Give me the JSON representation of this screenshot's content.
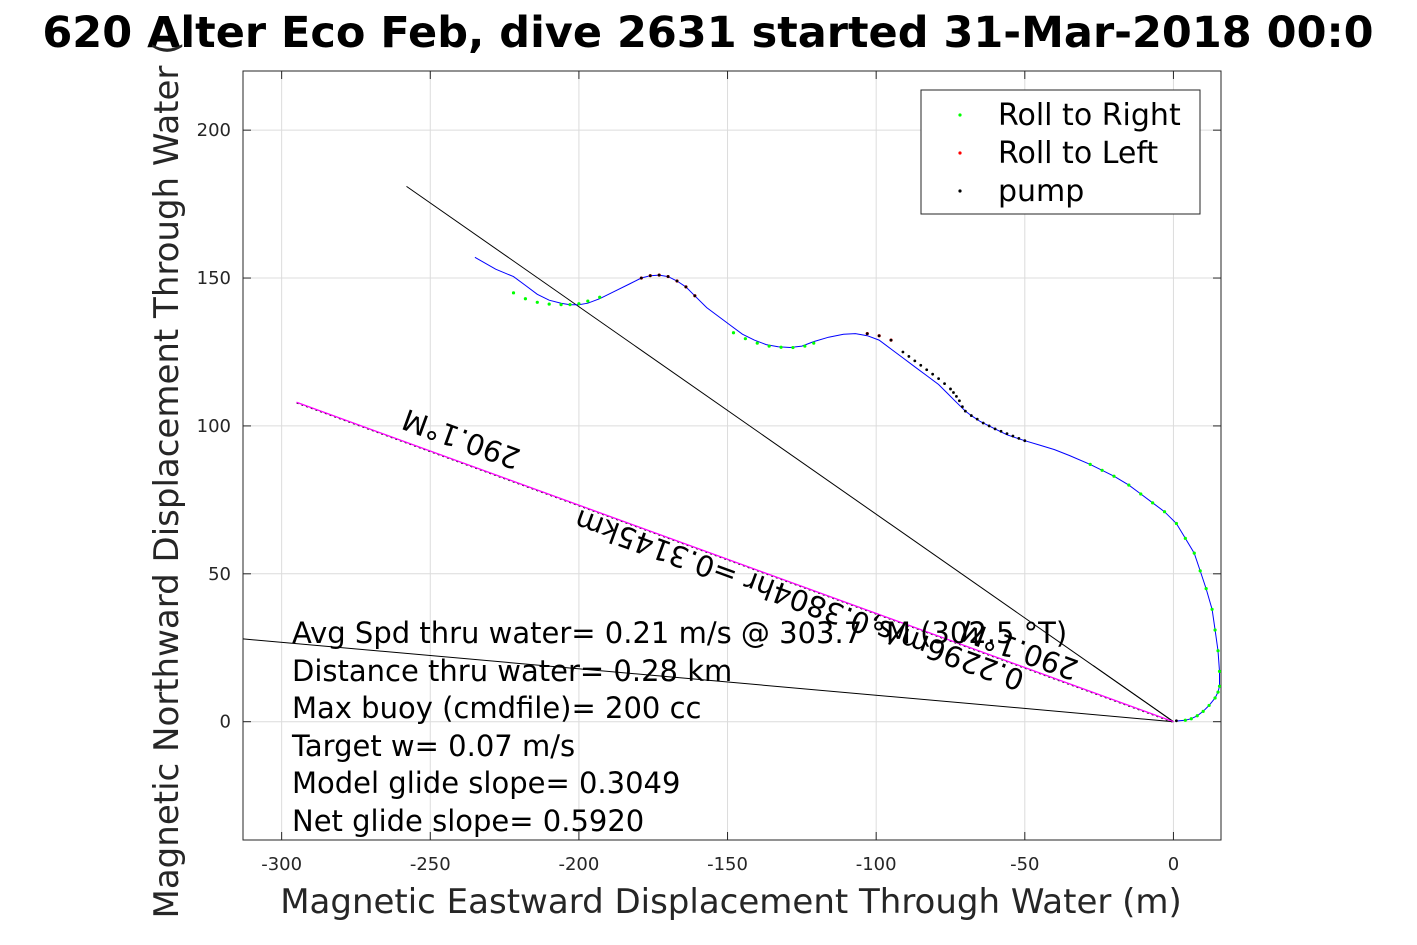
{
  "chart_data": {
    "type": "line",
    "title": "620 Alter Eco Feb, dive 2631 started 31-Mar-2018 00:0",
    "xlabel": "Magnetic Eastward Displacement Through Water (m)",
    "ylabel": "Magnetic Northward Displacement Through Water (",
    "xlim": [
      -313,
      16
    ],
    "ylim": [
      -40,
      220
    ],
    "xticks": [
      -300,
      -250,
      -200,
      -150,
      -100,
      -50,
      0
    ],
    "xtick_labels": [
      "-300",
      "-250",
      "-200",
      "-150",
      "-100",
      "-50",
      "0"
    ],
    "yticks": [
      0,
      50,
      100,
      150,
      200
    ],
    "ytick_labels": [
      "0",
      "50",
      "100",
      "150",
      "200"
    ],
    "grid": true,
    "legend_position": "top-right",
    "legend": [
      "Roll to Right",
      "Roll to Left",
      "pump"
    ],
    "colors": {
      "track": "#0000ff",
      "roll_right": "#00ff00",
      "roll_left": "#ff0000",
      "pump": "#000000",
      "current_line": "#ff00ff",
      "reference_lines": "#000000",
      "grid": "#dcdcdc",
      "axes": "#262626"
    },
    "series": [
      {
        "name": "track",
        "x": [
          -235,
          -228,
          -222,
          -218,
          -214,
          -210,
          -206,
          -203,
          -200,
          -197,
          -193,
          -188,
          -183,
          -179,
          -176,
          -173,
          -170,
          -167,
          -164,
          -161,
          -157,
          -153,
          -149,
          -145,
          -141,
          -137,
          -133,
          -129,
          -125,
          -121,
          -116,
          -111,
          -107,
          -103,
          -99,
          -95,
          -91,
          -87,
          -83,
          -79,
          -76,
          -73,
          -71,
          -70,
          -68,
          -65,
          -62,
          -59,
          -56,
          -53,
          -50,
          -45,
          -40,
          -35,
          -28,
          -24,
          -20,
          -15,
          -11,
          -7,
          -3,
          1,
          4,
          7,
          9,
          11,
          13,
          14,
          15,
          15.5,
          15.5,
          15,
          14,
          12,
          10,
          8,
          6,
          4,
          2,
          1
        ],
        "y": [
          157,
          153,
          150.5,
          147.5,
          144.5,
          142.5,
          141.5,
          141,
          141,
          141.5,
          143,
          145.5,
          148,
          150,
          150.8,
          151,
          150.5,
          149,
          147,
          144,
          140,
          137,
          134,
          131,
          129,
          127.5,
          126.8,
          126.5,
          127,
          128.5,
          130,
          131,
          131.2,
          130.5,
          129,
          126,
          123,
          120,
          117,
          114,
          111,
          108,
          106,
          105,
          103.5,
          101.5,
          100,
          98.5,
          97,
          96,
          95,
          93.5,
          92,
          90,
          87,
          85,
          83,
          80,
          77,
          74,
          71,
          67,
          62,
          57,
          51,
          45,
          38,
          31,
          24,
          17,
          12,
          10,
          8,
          5.5,
          3.5,
          2,
          1,
          0.5,
          0.3,
          0.2
        ]
      },
      {
        "name": "Roll to Right",
        "x": [
          -222,
          -218,
          -214,
          -210,
          -206,
          -203,
          -200,
          -197,
          -193,
          -148,
          -144,
          -140,
          -136,
          -132,
          -128,
          -124,
          -121,
          -28,
          -24,
          -20,
          -15,
          -11,
          -7,
          -3,
          1,
          4,
          7,
          9,
          11,
          13,
          14,
          15,
          15.5,
          15.5,
          15,
          14,
          12,
          10,
          8,
          6,
          4
        ],
        "y": [
          145,
          143,
          141.8,
          141.2,
          141,
          141,
          141.3,
          142.2,
          143.5,
          131.5,
          129.5,
          128,
          127,
          126.6,
          126.5,
          127,
          128,
          87,
          85,
          83,
          80,
          77,
          74,
          71,
          67,
          62,
          57,
          51,
          45,
          38,
          31,
          24,
          17,
          12,
          10,
          8,
          5.5,
          3.5,
          2,
          1,
          0.5
        ]
      },
      {
        "name": "Roll to Left",
        "x": [
          -179,
          -176,
          -173,
          -170,
          -167,
          -164,
          -161,
          -103,
          -99,
          -95
        ],
        "y": [
          150,
          150.8,
          151,
          150.5,
          149,
          147,
          144,
          131.2,
          130.5,
          129
        ]
      },
      {
        "name": "pump",
        "x": [
          -179,
          -176,
          -173,
          -170,
          -167,
          -164,
          -161,
          -103,
          -99,
          -95,
          -91,
          -89,
          -87,
          -85,
          -83,
          -81,
          -79,
          -77,
          -75,
          -74,
          -73,
          -72,
          -71,
          -70,
          -68,
          -66,
          -64,
          -62,
          -60,
          -58,
          -56,
          -54,
          -52,
          -50,
          1
        ],
        "y": [
          150,
          150.8,
          151,
          150.5,
          149,
          147,
          144,
          131.2,
          130.5,
          129,
          125,
          123.5,
          122,
          120.5,
          119,
          117.5,
          116,
          114.3,
          112.5,
          111.3,
          110,
          108.5,
          106.5,
          105,
          103.5,
          102.3,
          101,
          100,
          99,
          98.2,
          97.4,
          96.6,
          95.8,
          95,
          0.3
        ]
      },
      {
        "name": "current",
        "x": [
          -295,
          0
        ],
        "y": [
          108,
          0
        ]
      }
    ],
    "reference_lines": [
      {
        "x": [
          -258,
          0
        ],
        "y": [
          181,
          0
        ]
      },
      {
        "x": [
          -313,
          0
        ],
        "y": [
          28,
          0
        ]
      },
      {
        "x": [
          -27,
          0
        ],
        "y": [
          19,
          0
        ]
      }
    ],
    "annotations": [
      "Avg Spd thru water=  0.21 m/s @ 303.7 °M (302.5 °T)",
      "Distance thru water=  0.28 km",
      "Max buoy (cmdfile)= 200 cc",
      "Target w= 0.07 m/s",
      "Model glide slope= 0.3049",
      "Net glide slope= 0.5920"
    ],
    "rotated_labels": [
      "290.1°M",
      "0.2296m/s,0.3804hr =0.3145km",
      "290.1°M"
    ]
  }
}
